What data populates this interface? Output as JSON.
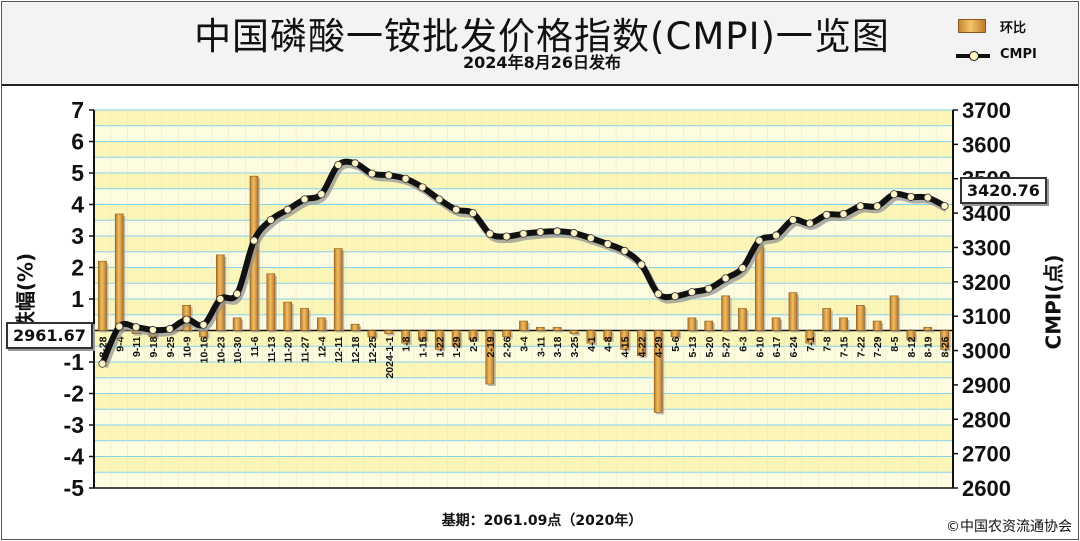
{
  "header": {
    "title": "中国磷酸一铵批发价格指数(CMPI)一览图",
    "subtitle": "2024年8月26日发布"
  },
  "legend": {
    "bar_label": "环比",
    "line_label": "CMPI"
  },
  "callouts": {
    "left_value": "2961.67",
    "right_value": "3420.76"
  },
  "footer": {
    "base": "基期：2061.09点（2020年）",
    "copyright": "©中国农资流通协会"
  },
  "colors": {
    "band_yellow": "#fbf6b8",
    "grid_blue": "#86d3ee",
    "bar": "#d4953e",
    "line": "#111111",
    "marker_fill": "#fff3c8"
  },
  "chart_data": {
    "type": "bar+line",
    "xlabel": "",
    "ylabel_left": "涨跌幅(%)",
    "ylabel_right": "CMPI(点)",
    "ylim_left": [
      -5,
      7
    ],
    "ylim_right": [
      2600,
      3700
    ],
    "yticks_left": [
      -5,
      -4,
      -3,
      -2,
      -1,
      0,
      1,
      2,
      3,
      4,
      5,
      6,
      7
    ],
    "yticks_right": [
      2600,
      2700,
      2800,
      2900,
      3000,
      3100,
      3200,
      3300,
      3400,
      3500,
      3600,
      3700
    ],
    "grid": true,
    "legend_position": "top-right",
    "categories": [
      "8-28",
      "9-4",
      "9-11",
      "9-18",
      "9-25",
      "10-9",
      "10-16",
      "10-23",
      "10-30",
      "11-6",
      "11-13",
      "11-20",
      "11-27",
      "12-4",
      "12-11",
      "12-18",
      "12-25",
      "2024-1-1",
      "1-8",
      "1-15",
      "1-22",
      "1-29",
      "2-5",
      "2-19",
      "2-26",
      "3-4",
      "3-11",
      "3-18",
      "3-25",
      "4-1",
      "4-8",
      "4-15",
      "4-22",
      "4-29",
      "5-6",
      "5-13",
      "5-20",
      "5-27",
      "6-3",
      "6-10",
      "6-17",
      "6-24",
      "7-1",
      "7-8",
      "7-15",
      "7-22",
      "7-29",
      "8-5",
      "8-12",
      "8-19",
      "8-26"
    ],
    "series": [
      {
        "name": "环比",
        "type": "bar",
        "axis": "left",
        "values": [
          2.2,
          3.7,
          -0.1,
          -0.2,
          0.1,
          0.8,
          -0.2,
          2.4,
          0.4,
          4.9,
          1.8,
          0.9,
          0.7,
          0.4,
          2.6,
          0.2,
          -0.2,
          -0.1,
          -0.4,
          -0.3,
          -0.6,
          -0.5,
          -0.3,
          -1.7,
          -0.2,
          0.3,
          0.1,
          0.1,
          -0.1,
          -0.4,
          -0.3,
          -0.6,
          -0.8,
          -2.6,
          -0.2,
          0.4,
          0.3,
          1.1,
          0.7,
          2.7,
          0.4,
          1.2,
          -0.4,
          0.7,
          0.4,
          0.8,
          0.3,
          1.1,
          -0.3,
          0.1,
          -0.6
        ]
      },
      {
        "name": "CMPI",
        "type": "line",
        "axis": "right",
        "values": [
          2961.67,
          3070,
          3068,
          3060,
          3063,
          3090,
          3075,
          3150,
          3165,
          3320,
          3380,
          3410,
          3440,
          3455,
          3540,
          3545,
          3515,
          3510,
          3500,
          3475,
          3440,
          3410,
          3400,
          3340,
          3332,
          3340,
          3345,
          3347,
          3342,
          3327,
          3310,
          3290,
          3250,
          3165,
          3158,
          3170,
          3180,
          3210,
          3240,
          3320,
          3335,
          3380,
          3370,
          3395,
          3397,
          3420,
          3420,
          3455,
          3447,
          3445,
          3420.76
        ]
      }
    ]
  }
}
